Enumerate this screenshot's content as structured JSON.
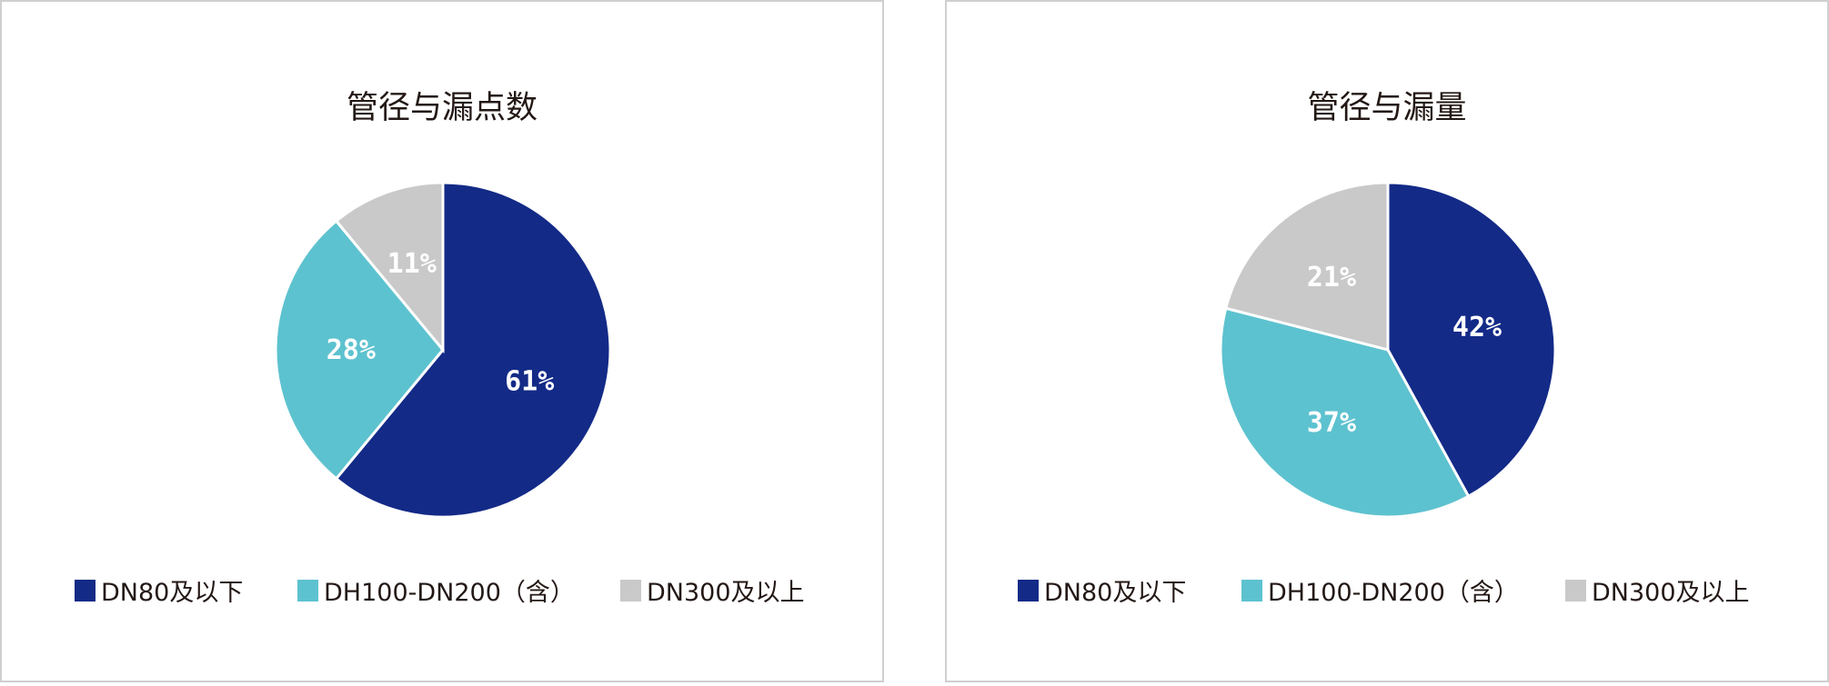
{
  "colors": {
    "dn80": "#132a87",
    "dh100": "#5dc2cf",
    "dn300": "#c9c9c9"
  },
  "legend": [
    "DN80及以下",
    "DH100-DN200（含）",
    "DN300及以上"
  ],
  "chart_data": [
    {
      "type": "pie",
      "title": "管径与漏点数",
      "categories": [
        "DN80及以下",
        "DH100-DN200（含）",
        "DN300及以上"
      ],
      "values": [
        61,
        28,
        11
      ],
      "labels": [
        "61%",
        "28%",
        "11%"
      ],
      "legend_position": "bottom"
    },
    {
      "type": "pie",
      "title": "管径与漏量",
      "categories": [
        "DN80及以下",
        "DH100-DN200（含）",
        "DN300及以上"
      ],
      "values": [
        42,
        37,
        21
      ],
      "labels": [
        "42%",
        "37%",
        "21%"
      ],
      "legend_position": "bottom"
    }
  ]
}
